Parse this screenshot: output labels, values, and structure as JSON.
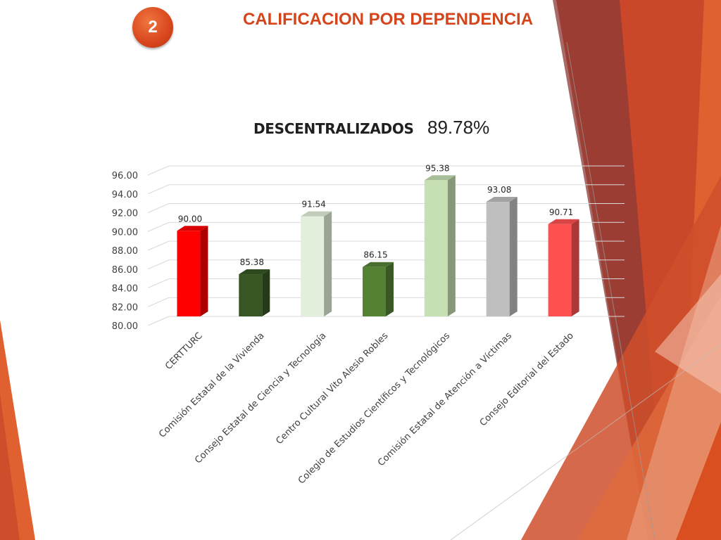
{
  "slide": {
    "number": "2",
    "title": "CALIFICACION POR DEPENDENCIA"
  },
  "chart_heading": {
    "title": "DESCENTRALIZADOS",
    "percentage": "89.78%"
  },
  "chart_data": {
    "type": "bar",
    "title": "DESCENTRALIZADOS",
    "categories": [
      "CERTTURC",
      "Comisión Estatal de la Vivienda",
      "Consejo Estatal de Ciencia y Tecnología",
      "Centro Cultural Vito Alesio Robles",
      "Colegio de Estudios Científicos y Tecnológicos",
      "Comisión Estatal de Atención a Víctimas",
      "Consejo Editorial del Estado"
    ],
    "values": [
      90.0,
      85.38,
      91.54,
      86.15,
      95.38,
      93.08,
      90.71
    ],
    "data_labels": [
      "90.00",
      "85.38",
      "91.54",
      "86.15",
      "95.38",
      "93.08",
      "90.71"
    ],
    "bar_colors": [
      "#ff0000",
      "#375623",
      "#e2efda",
      "#548235",
      "#c6e0b4",
      "#bfbfbf",
      "#ff5050"
    ],
    "ylim": [
      80,
      96
    ],
    "yticks": [
      "80.00",
      "82.00",
      "84.00",
      "86.00",
      "88.00",
      "90.00",
      "92.00",
      "94.00",
      "96.00"
    ],
    "grid": true,
    "legend": "none",
    "style": "3d-column"
  },
  "theme": {
    "accent": "#d4451c"
  }
}
